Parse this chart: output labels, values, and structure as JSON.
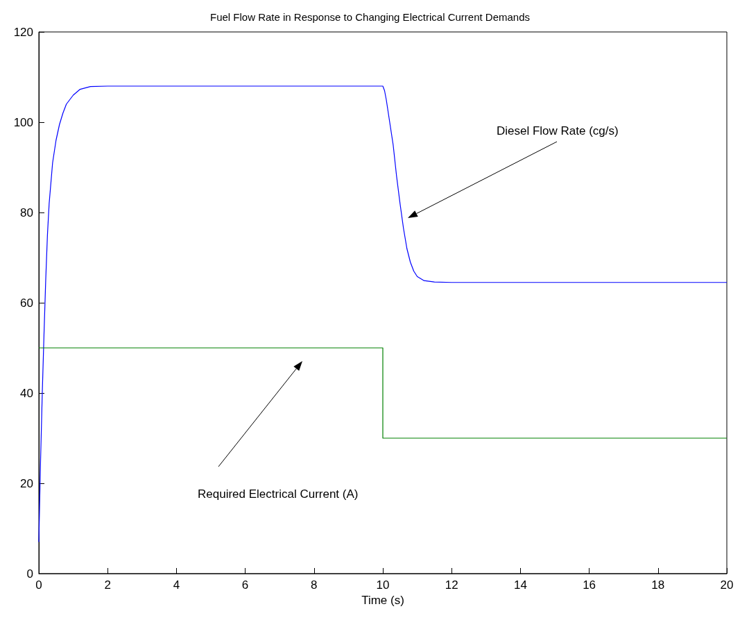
{
  "chart_data": {
    "type": "line",
    "title": "Fuel Flow Rate in Response to Changing Electrical Current Demands",
    "xlabel": "Time (s)",
    "series": [
      {
        "color": "#0000ff",
        "x": [
          0,
          0.05,
          0.1,
          0.15,
          0.2,
          0.25,
          0.3,
          0.4,
          0.5,
          0.6,
          0.7,
          0.8,
          1.0,
          1.2,
          1.5,
          2,
          10,
          10.05,
          10.1,
          10.2,
          10.3,
          10.4,
          10.5,
          10.6,
          10.7,
          10.8,
          10.9,
          11,
          11.2,
          11.5,
          12,
          20
        ],
        "values": [
          7,
          25,
          40,
          53,
          65,
          75,
          82,
          91,
          96,
          99.5,
          102,
          104,
          106,
          107.3,
          107.9,
          108,
          108,
          107,
          105,
          100,
          95,
          88,
          82,
          76.5,
          72,
          69,
          67,
          65.8,
          64.9,
          64.6,
          64.5,
          64.5
        ]
      },
      {
        "color": "#008000",
        "x": [
          0,
          10,
          10,
          20
        ],
        "values": [
          50,
          50,
          30,
          30
        ]
      }
    ],
    "annotations": [
      "Diesel Flow Rate (cg/s)",
      "Required Electrical Current (A)"
    ],
    "xlim": [
      0,
      20
    ],
    "xticks": [
      0,
      2,
      4,
      6,
      8,
      10,
      12,
      14,
      16,
      18,
      20
    ],
    "ylim": [
      0,
      120
    ],
    "yticks": [
      0,
      20,
      40,
      60,
      80,
      100,
      120
    ],
    "grid": false,
    "marker": "none",
    "line_style": "solid"
  }
}
